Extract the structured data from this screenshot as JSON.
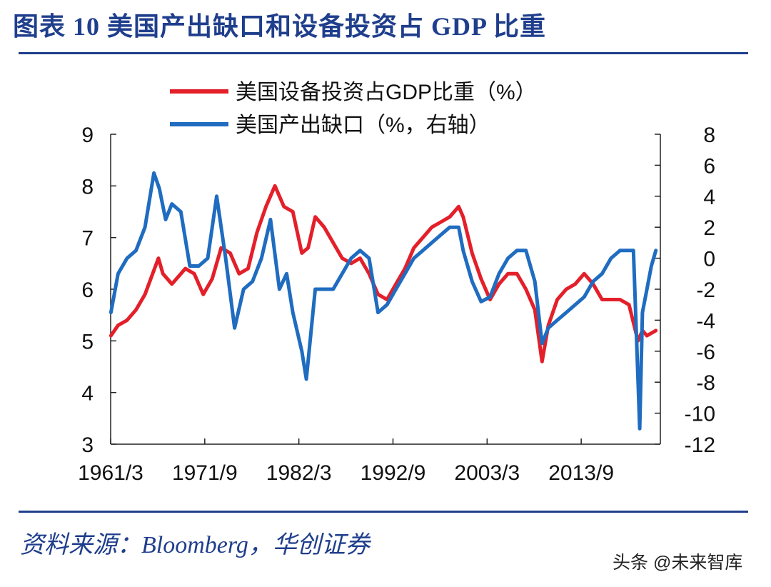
{
  "header": {
    "title": "图表 10  美国产出缺口和设备投资占 GDP 比重"
  },
  "footer": {
    "source": "资料来源：Bloomberg，华创证券",
    "watermark": "头条 @未来智库"
  },
  "chart_data": {
    "type": "line",
    "x_tick_labels": [
      "1961/3",
      "1971/9",
      "1982/3",
      "1992/9",
      "2003/3",
      "2013/9"
    ],
    "x_ticks": [
      1961.17,
      1971.67,
      1982.17,
      1992.67,
      2003.17,
      2013.67
    ],
    "xlim": [
      1961.17,
      2022.5
    ],
    "y_left": {
      "lim": [
        3,
        9
      ],
      "ticks": [
        3,
        4,
        5,
        6,
        7,
        8,
        9
      ]
    },
    "y_right": {
      "lim": [
        -12,
        8
      ],
      "ticks": [
        -12,
        -10,
        -8,
        -6,
        -4,
        -2,
        0,
        2,
        4,
        6,
        8
      ]
    },
    "legend_position": "top",
    "series": [
      {
        "name": "美国设备投资占GDP比重（%）",
        "axis": "left",
        "color": "#e3202a",
        "x": [
          1961.2,
          1962.0,
          1963.0,
          1964.0,
          1965.0,
          1966.5,
          1967.0,
          1968.0,
          1969.5,
          1970.5,
          1971.5,
          1972.5,
          1973.5,
          1974.5,
          1975.5,
          1976.5,
          1977.5,
          1978.5,
          1979.5,
          1980.5,
          1981.5,
          1982.5,
          1983.2,
          1984.0,
          1985.0,
          1986.0,
          1987.0,
          1988.0,
          1989.0,
          1990.0,
          1991.0,
          1992.0,
          1993.0,
          1994.0,
          1995.0,
          1996.0,
          1997.0,
          1998.0,
          1999.0,
          2000.0,
          2000.5,
          2001.5,
          2002.5,
          2003.5,
          2004.5,
          2005.5,
          2006.5,
          2007.5,
          2008.5,
          2009.3,
          2010.0,
          2011.0,
          2012.0,
          2013.0,
          2014.0,
          2015.0,
          2016.0,
          2017.0,
          2018.0,
          2019.0,
          2020.0,
          2020.5,
          2021.0,
          2022.0
        ],
        "values": [
          5.1,
          5.3,
          5.4,
          5.6,
          5.9,
          6.6,
          6.3,
          6.1,
          6.4,
          6.3,
          5.9,
          6.2,
          6.8,
          6.7,
          6.3,
          6.4,
          7.1,
          7.6,
          8.0,
          7.6,
          7.5,
          6.7,
          6.8,
          7.4,
          7.2,
          6.9,
          6.6,
          6.5,
          6.6,
          6.3,
          5.9,
          5.8,
          6.1,
          6.4,
          6.8,
          7.0,
          7.2,
          7.3,
          7.4,
          7.6,
          7.4,
          6.7,
          6.2,
          5.8,
          6.1,
          6.3,
          6.3,
          6.0,
          5.6,
          4.6,
          5.3,
          5.8,
          6.0,
          6.1,
          6.3,
          6.1,
          5.8,
          5.8,
          5.8,
          5.7,
          5.0,
          5.2,
          5.1,
          5.2
        ]
      },
      {
        "name": "美国产出缺口（%，右轴）",
        "axis": "right",
        "color": "#1f6cc0",
        "x": [
          1961.2,
          1962.0,
          1963.0,
          1964.0,
          1965.0,
          1966.0,
          1966.6,
          1967.3,
          1968.0,
          1969.0,
          1970.0,
          1971.0,
          1972.0,
          1973.0,
          1974.0,
          1975.0,
          1976.0,
          1977.0,
          1978.0,
          1979.0,
          1980.0,
          1980.8,
          1981.5,
          1982.5,
          1983.0,
          1984.0,
          1985.0,
          1986.0,
          1987.0,
          1988.0,
          1989.0,
          1990.0,
          1991.0,
          1992.0,
          1993.0,
          1994.0,
          1995.0,
          1996.0,
          1997.0,
          1998.0,
          1999.0,
          2000.0,
          2000.5,
          2001.5,
          2002.5,
          2003.5,
          2004.5,
          2005.5,
          2006.5,
          2007.5,
          2008.5,
          2009.3,
          2010.0,
          2011.0,
          2012.0,
          2013.0,
          2014.0,
          2015.0,
          2016.0,
          2017.0,
          2018.0,
          2019.5,
          2020.2,
          2020.5,
          2021.0,
          2021.5,
          2022.0
        ],
        "values": [
          -3.5,
          -1.0,
          0.0,
          0.5,
          2.0,
          5.5,
          4.5,
          2.5,
          3.5,
          3.0,
          -0.5,
          -0.5,
          0.0,
          4.0,
          0.0,
          -4.5,
          -2.0,
          -1.5,
          0.0,
          2.5,
          -2.0,
          -1.0,
          -3.5,
          -6.0,
          -7.8,
          -2.0,
          -2.0,
          -2.0,
          -1.0,
          0.0,
          0.5,
          0.0,
          -3.5,
          -3.0,
          -2.0,
          -1.0,
          0.0,
          0.5,
          1.0,
          1.5,
          2.0,
          2.0,
          0.5,
          -1.5,
          -2.8,
          -2.5,
          -1.0,
          0.0,
          0.5,
          0.5,
          -1.5,
          -5.5,
          -4.5,
          -4.0,
          -3.5,
          -3.0,
          -2.5,
          -1.5,
          -1.0,
          0.0,
          0.5,
          0.5,
          -11.0,
          -3.5,
          -2.0,
          -0.5,
          0.5
        ]
      }
    ]
  }
}
